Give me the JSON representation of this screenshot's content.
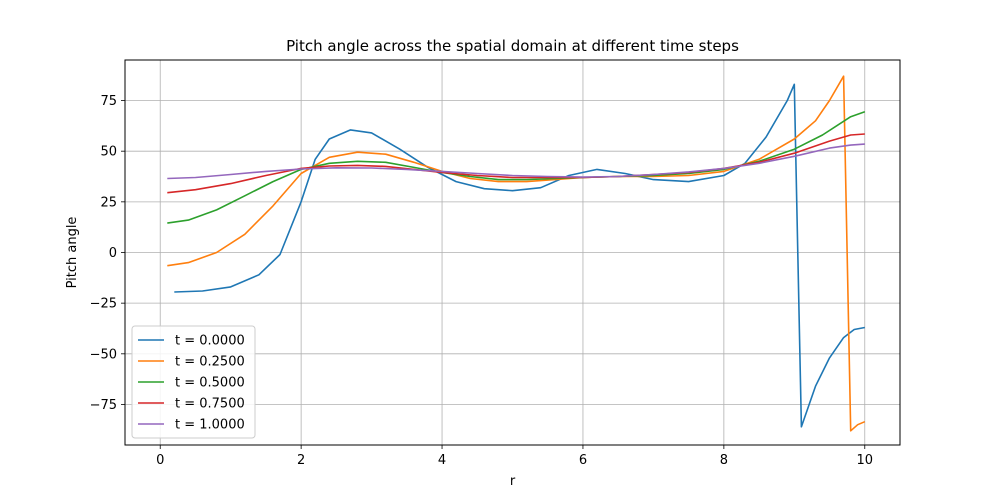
{
  "chart_data": {
    "type": "line",
    "title": "Pitch angle across the spatial domain at different time steps",
    "xlabel": "r",
    "ylabel": "Pitch angle",
    "xlim": [
      -0.5,
      10.5
    ],
    "ylim": [
      -95,
      95
    ],
    "xticks": [
      0,
      2,
      4,
      6,
      8,
      10
    ],
    "yticks": [
      -75,
      -50,
      -25,
      0,
      25,
      50,
      75
    ],
    "xtick_labels": [
      "0",
      "2",
      "4",
      "6",
      "8",
      "10"
    ],
    "ytick_labels": [
      "−75",
      "−50",
      "−25",
      "0",
      "25",
      "50",
      "75"
    ],
    "grid": true,
    "legend_position": "lower-left",
    "series": [
      {
        "name": "t = 0.0000",
        "color": "#1f77b4",
        "points": [
          [
            0.2,
            -19.5
          ],
          [
            0.6,
            -19
          ],
          [
            1.0,
            -17
          ],
          [
            1.4,
            -11
          ],
          [
            1.7,
            -1
          ],
          [
            2.0,
            25
          ],
          [
            2.2,
            46
          ],
          [
            2.4,
            56
          ],
          [
            2.7,
            60.5
          ],
          [
            3.0,
            59
          ],
          [
            3.4,
            51
          ],
          [
            3.8,
            42
          ],
          [
            4.2,
            35
          ],
          [
            4.6,
            31.5
          ],
          [
            5.0,
            30.5
          ],
          [
            5.4,
            32
          ],
          [
            5.8,
            38
          ],
          [
            6.2,
            41
          ],
          [
            6.6,
            39
          ],
          [
            7.0,
            36
          ],
          [
            7.5,
            35
          ],
          [
            8.0,
            38
          ],
          [
            8.3,
            44
          ],
          [
            8.6,
            57
          ],
          [
            8.9,
            75
          ],
          [
            9.0,
            83
          ],
          [
            9.1,
            -86
          ],
          [
            9.3,
            -66
          ],
          [
            9.5,
            -52
          ],
          [
            9.7,
            -42
          ],
          [
            9.85,
            -38
          ],
          [
            10.0,
            -37
          ]
        ]
      },
      {
        "name": "t = 0.2500",
        "color": "#ff7f0e",
        "points": [
          [
            0.1,
            -6.5
          ],
          [
            0.4,
            -5
          ],
          [
            0.8,
            0
          ],
          [
            1.2,
            9
          ],
          [
            1.6,
            23
          ],
          [
            2.0,
            39
          ],
          [
            2.4,
            47
          ],
          [
            2.8,
            49.5
          ],
          [
            3.2,
            48.5
          ],
          [
            3.6,
            44.5
          ],
          [
            4.0,
            40
          ],
          [
            4.4,
            36.5
          ],
          [
            4.8,
            35
          ],
          [
            5.2,
            35
          ],
          [
            5.6,
            36
          ],
          [
            6.0,
            37
          ],
          [
            6.5,
            37.5
          ],
          [
            7.0,
            37.5
          ],
          [
            7.5,
            38
          ],
          [
            8.0,
            40
          ],
          [
            8.5,
            46
          ],
          [
            9.0,
            56
          ],
          [
            9.3,
            65
          ],
          [
            9.5,
            75
          ],
          [
            9.7,
            87
          ],
          [
            9.8,
            -88
          ],
          [
            9.9,
            -85
          ],
          [
            10.0,
            -83.5
          ]
        ]
      },
      {
        "name": "t = 0.5000",
        "color": "#2ca02c",
        "points": [
          [
            0.1,
            14.5
          ],
          [
            0.4,
            16
          ],
          [
            0.8,
            21
          ],
          [
            1.2,
            28
          ],
          [
            1.6,
            35
          ],
          [
            2.0,
            41
          ],
          [
            2.4,
            44
          ],
          [
            2.8,
            45
          ],
          [
            3.2,
            44.5
          ],
          [
            3.6,
            42
          ],
          [
            4.0,
            39.5
          ],
          [
            4.4,
            37.5
          ],
          [
            4.8,
            36
          ],
          [
            5.2,
            36
          ],
          [
            5.6,
            36.5
          ],
          [
            6.0,
            37
          ],
          [
            6.5,
            37.5
          ],
          [
            7.0,
            38
          ],
          [
            7.5,
            39
          ],
          [
            8.0,
            41
          ],
          [
            8.5,
            45
          ],
          [
            9.0,
            51
          ],
          [
            9.4,
            58
          ],
          [
            9.8,
            67
          ],
          [
            10.0,
            69.5
          ]
        ]
      },
      {
        "name": "t = 0.7500",
        "color": "#d62728",
        "points": [
          [
            0.1,
            29.5
          ],
          [
            0.5,
            31
          ],
          [
            1.0,
            34
          ],
          [
            1.5,
            38
          ],
          [
            2.0,
            41.5
          ],
          [
            2.4,
            42.7
          ],
          [
            2.8,
            43
          ],
          [
            3.2,
            42.5
          ],
          [
            3.6,
            41
          ],
          [
            4.0,
            39.5
          ],
          [
            4.5,
            38
          ],
          [
            5.0,
            37
          ],
          [
            5.5,
            37
          ],
          [
            6.0,
            37
          ],
          [
            6.5,
            37.5
          ],
          [
            7.0,
            38.5
          ],
          [
            7.5,
            39.5
          ],
          [
            8.0,
            41.5
          ],
          [
            8.5,
            44.5
          ],
          [
            9.0,
            49
          ],
          [
            9.5,
            55
          ],
          [
            9.8,
            58
          ],
          [
            10.0,
            58.5
          ]
        ]
      },
      {
        "name": "t = 1.0000",
        "color": "#9467bd",
        "points": [
          [
            0.1,
            36.5
          ],
          [
            0.5,
            37
          ],
          [
            1.0,
            38.5
          ],
          [
            1.5,
            40
          ],
          [
            2.0,
            41.2
          ],
          [
            2.5,
            41.8
          ],
          [
            3.0,
            41.7
          ],
          [
            3.5,
            41
          ],
          [
            4.0,
            40
          ],
          [
            4.5,
            39
          ],
          [
            5.0,
            38
          ],
          [
            5.5,
            37.5
          ],
          [
            6.0,
            37.2
          ],
          [
            6.5,
            37.5
          ],
          [
            7.0,
            38.5
          ],
          [
            7.5,
            39.8
          ],
          [
            8.0,
            41.5
          ],
          [
            8.5,
            44
          ],
          [
            9.0,
            47.5
          ],
          [
            9.5,
            51.5
          ],
          [
            9.8,
            53
          ],
          [
            10.0,
            53.5
          ]
        ]
      }
    ]
  }
}
